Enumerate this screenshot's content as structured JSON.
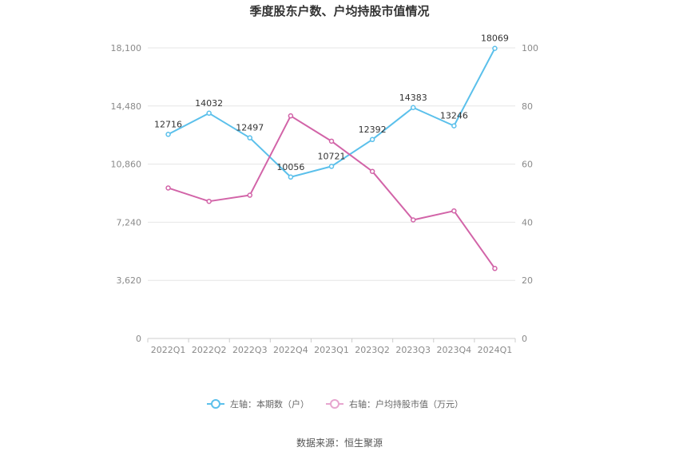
{
  "chart_data": {
    "type": "line",
    "title": "季度股东户数、户均持股市值情况",
    "categories": [
      "2022Q1",
      "2022Q2",
      "2022Q3",
      "2022Q4",
      "2023Q1",
      "2023Q2",
      "2023Q3",
      "2023Q4",
      "2024Q1"
    ],
    "series": [
      {
        "name": "左轴：本期数（户）",
        "axis": "left",
        "color": "#5bc0eb",
        "values": [
          12716,
          14032,
          12497,
          10056,
          10721,
          12392,
          14383,
          13246,
          18069
        ],
        "show_labels": true
      },
      {
        "name": "右轴：户均持股市值（万元）",
        "axis": "right",
        "color": "#d264a8",
        "values": [
          51.8,
          47.2,
          49.3,
          76.6,
          67.9,
          57.5,
          40.8,
          43.9,
          24.1
        ],
        "show_labels": false
      }
    ],
    "y_left": {
      "min": 0,
      "max": 18100,
      "ticks": [
        0,
        3620,
        7240,
        10860,
        14480,
        18100
      ],
      "tick_labels": [
        "0",
        "3,620",
        "7,240",
        "10,860",
        "14,480",
        "18,100"
      ]
    },
    "y_right": {
      "min": 0,
      "max": 100,
      "ticks": [
        0,
        20,
        40,
        60,
        80,
        100
      ],
      "tick_labels": [
        "0",
        "20",
        "40",
        "60",
        "80",
        "100"
      ]
    },
    "grid": true,
    "legend_position": "bottom-center"
  },
  "source_text": "数据来源：恒生聚源"
}
